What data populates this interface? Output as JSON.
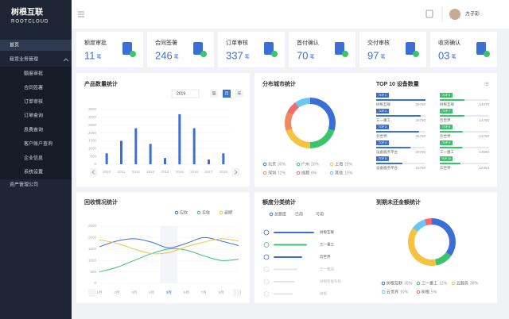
{
  "sidebar": {
    "logo": "树根互联",
    "logo_sub": "ROOTCLOUD",
    "home": "首页",
    "group": "租赁业务管理",
    "group_items": [
      "额度审批",
      "合同签署",
      "订单审核",
      "订单查询",
      "息费查询",
      "客户账户查询",
      "企业信息",
      "系统设置"
    ],
    "asset": "资产管理公司"
  },
  "topbar": {
    "user": "方子彩"
  },
  "stats": [
    {
      "title": "额度审批",
      "count": "11",
      "unit": "笔"
    },
    {
      "title": "合同签署",
      "count": "246",
      "unit": "笔"
    },
    {
      "title": "订单审核",
      "count": "337",
      "unit": "笔"
    },
    {
      "title": "首付确认",
      "count": "70",
      "unit": "笔"
    },
    {
      "title": "交付审核",
      "count": "97",
      "unit": "笔"
    },
    {
      "title": "收货确认",
      "count": "03",
      "unit": "笔"
    }
  ],
  "product_chart": {
    "type": "bar",
    "title": "产品数量统计",
    "year": "2019",
    "tabs": [
      "周",
      "月",
      "年"
    ],
    "categories": [
      "2010",
      "2011",
      "2012",
      "2013",
      "2014",
      "2015",
      "2016",
      "2017",
      "2018"
    ],
    "values": [
      700,
      1500,
      2300,
      1300,
      400,
      3200,
      2300,
      300,
      700
    ],
    "color": "#3a6fd8",
    "ylim": [
      0,
      3500
    ],
    "yticks": [
      0,
      500,
      1000,
      1500,
      2000,
      2500,
      3000,
      3500
    ],
    "grid": true
  },
  "city_chart": {
    "type": "donut",
    "title": "分布城市统计",
    "categories": [
      "北京",
      "广州",
      "上海",
      "深圳",
      "成都",
      "其他"
    ],
    "values": [
      30,
      20,
      20,
      12,
      8,
      10
    ],
    "value_labels": [
      "30%",
      "20%",
      "20%",
      "12%",
      "8%",
      "10%"
    ],
    "colors": [
      "#3a6fd8",
      "#3cc46b",
      "#f5c242",
      "#f08a5d",
      "#f06c6c",
      "#6bc6f0"
    ]
  },
  "top10": {
    "title": "TOP 10 设备数量",
    "unit": "/台",
    "items": [
      {
        "rank": "TOP 1",
        "name": "树根互联",
        "value": 29760
      },
      {
        "rank": "TOP 2",
        "name": "三一重工",
        "value": 26760
      },
      {
        "rank": "TOP 3",
        "name": "云世界",
        "value": 25760
      },
      {
        "rank": "TOP 4",
        "name": "设备服务平台",
        "value": 20760
      },
      {
        "rank": "TOP 5",
        "name": "设备服务平台",
        "value": 15760
      },
      {
        "rank": "TOP 6",
        "name": "树根互联",
        "value": 14870
      },
      {
        "rank": "TOP 7",
        "name": "云世界",
        "value": 14760
      },
      {
        "rank": "TOP 8",
        "name": "云世界",
        "value": 13760
      },
      {
        "rank": "TOP 9",
        "name": "三一重工",
        "value": 13560
      },
      {
        "rank": "TOP 10",
        "name": "云世界",
        "value": 12464
      }
    ]
  },
  "recovery_chart": {
    "type": "line",
    "title": "回收情况统计",
    "x": [
      "1月",
      "2月",
      "3月",
      "4月",
      "5月",
      "6月",
      "7月",
      "8月",
      "9月"
    ],
    "series": [
      {
        "name": "应收",
        "color": "#3a6fd8",
        "values": [
          1600,
          1850,
          1950,
          1800,
          1550,
          1750,
          2000,
          1850,
          1650
        ]
      },
      {
        "name": "实收",
        "color": "#3cc46b",
        "values": [
          500,
          700,
          1000,
          1300,
          1500,
          1450,
          1200,
          1000,
          1050
        ]
      },
      {
        "name": "逾期",
        "color": "#f5c242",
        "values": [
          1900,
          1750,
          1500,
          1300,
          1350,
          1600,
          1800,
          1950,
          1850
        ]
      }
    ],
    "ylim": [
      0,
      2500
    ],
    "yticks": [
      0,
      500,
      1000,
      1500,
      2000,
      2500
    ],
    "grid": true
  },
  "quota": {
    "title": "额度分类统计",
    "tabs": [
      "总额度",
      "已用",
      "可用"
    ],
    "items": [
      {
        "name": "树根互联",
        "value": 85,
        "color": "#3a6fd8"
      },
      {
        "name": "三一重工",
        "value": 70,
        "color": "#3cc46b"
      },
      {
        "name": "云世界",
        "value": 60,
        "color": "#3a6fd8"
      },
      {
        "name": "三一集团",
        "value": 50,
        "color": "#e3e6ec"
      },
      {
        "name": "树根智能科技",
        "value": 45,
        "color": "#e3e6ec"
      },
      {
        "name": "树根",
        "value": 40,
        "color": "#e3e6ec"
      }
    ]
  },
  "overdue_chart": {
    "type": "donut",
    "title": "到期未还金额统计",
    "categories": [
      "树根互联",
      "三一重工",
      "云服务",
      "云世界",
      "树根"
    ],
    "values": [
      35,
      12,
      38,
      10,
      5
    ],
    "value_labels": [
      "35%",
      "12%",
      "38%",
      "10%",
      "5%"
    ],
    "colors": [
      "#3a6fd8",
      "#3cc46b",
      "#f5c242",
      "#6bc6f0",
      "#f06c6c"
    ]
  }
}
